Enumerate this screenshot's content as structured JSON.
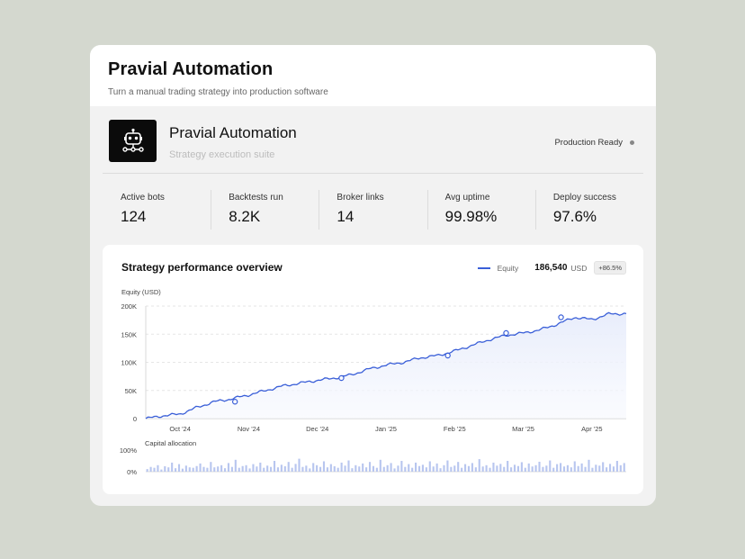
{
  "header": {
    "title": "Pravial Automation",
    "subtitle": "Turn a manual trading strategy into production software"
  },
  "brand": {
    "name": "Pravial Automation",
    "tagline": "Strategy execution suite",
    "status": "Production Ready",
    "logo_icon": "robot-network-icon"
  },
  "stats": [
    {
      "label": "Active bots",
      "value": "124"
    },
    {
      "label": "Backtests run",
      "value": "8.2K"
    },
    {
      "label": "Broker links",
      "value": "14"
    },
    {
      "label": "Avg uptime",
      "value": "99.98%"
    },
    {
      "label": "Deploy success",
      "value": "97.6%"
    }
  ],
  "panel": {
    "title": "Strategy performance overview",
    "legend_label": "Equity",
    "current_value": "186,540",
    "currency": "USD",
    "delta": "+86.5%",
    "y_axis_label": "Equity (USD)",
    "allocation_label": "Capital allocation"
  },
  "colors": {
    "accent": "#3a5fd8",
    "fill": "#e8edfb",
    "bars": "#b8c6ef"
  },
  "chart_data": [
    {
      "type": "area",
      "ylabel": "Equity (USD)",
      "ylim": [
        0,
        200000
      ],
      "y_ticks": [
        "0",
        "50K",
        "100K",
        "150K",
        "200K"
      ],
      "y_tick_values": [
        0,
        50000,
        100000,
        150000,
        200000
      ],
      "x_ticks": [
        "Oct '24",
        "Nov '24",
        "Dec '24",
        "Jan '25",
        "Feb '25",
        "Mar '25",
        "Apr '25"
      ],
      "x_tick_pos": [
        0.5,
        1.5,
        2.5,
        3.5,
        4.5,
        5.5,
        6.5
      ],
      "xlim": [
        0,
        7
      ],
      "grid": true,
      "series": [
        {
          "name": "Equity",
          "x": [
            0,
            0.25,
            0.5,
            0.75,
            1,
            1.25,
            1.5,
            1.75,
            2,
            2.25,
            2.5,
            2.75,
            3,
            3.25,
            3.5,
            3.75,
            4,
            4.25,
            4.5,
            4.75,
            5,
            5.25,
            5.5,
            5.75,
            6,
            6.25,
            6.5,
            6.75,
            7
          ],
          "y": [
            0,
            5000,
            8000,
            20000,
            30000,
            35000,
            42000,
            50000,
            58000,
            63000,
            68000,
            72000,
            78000,
            88000,
            95000,
            100000,
            108000,
            112000,
            120000,
            130000,
            140000,
            148000,
            152000,
            158000,
            168000,
            180000,
            176000,
            186000,
            186540
          ]
        }
      ],
      "markers": [
        {
          "x": 1.3,
          "y": 30000
        },
        {
          "x": 2.85,
          "y": 72000
        },
        {
          "x": 4.4,
          "y": 112000
        },
        {
          "x": 5.25,
          "y": 152000
        },
        {
          "x": 6.05,
          "y": 180000
        }
      ]
    },
    {
      "type": "bar",
      "title": "Capital allocation",
      "ylim": [
        0,
        100
      ],
      "y_ticks": [
        "0%",
        "100%"
      ],
      "values": [
        12,
        22,
        18,
        30,
        10,
        25,
        20,
        42,
        16,
        35,
        14,
        28,
        20,
        18,
        26,
        38,
        22,
        18,
        45,
        20,
        24,
        30,
        16,
        40,
        22,
        55,
        18,
        26,
        30,
        15,
        35,
        24,
        42,
        18,
        28,
        22,
        50,
        20,
        32,
        25,
        45,
        18,
        36,
        60,
        22,
        28,
        15,
        40,
        30,
        22,
        48,
        20,
        35,
        25,
        18,
        42,
        28,
        52,
        16,
        30,
        24,
        38,
        20,
        45,
        26,
        18,
        55,
        22,
        30,
        40,
        15,
        28,
        50,
        22,
        35,
        18,
        42,
        26,
        32,
        20,
        48,
        24,
        38,
        16,
        30,
        52,
        22,
        28,
        45,
        18,
        35,
        26,
        40,
        20,
        58,
        24,
        30,
        18,
        42,
        28,
        36,
        22,
        50,
        20,
        32,
        26,
        44,
        18,
        38,
        24,
        30,
        46,
        22,
        28,
        52,
        18,
        35,
        40,
        24,
        30,
        20,
        48,
        26,
        38,
        22,
        55,
        18,
        32,
        28,
        44,
        20,
        36,
        24,
        50,
        30,
        40
      ]
    }
  ]
}
